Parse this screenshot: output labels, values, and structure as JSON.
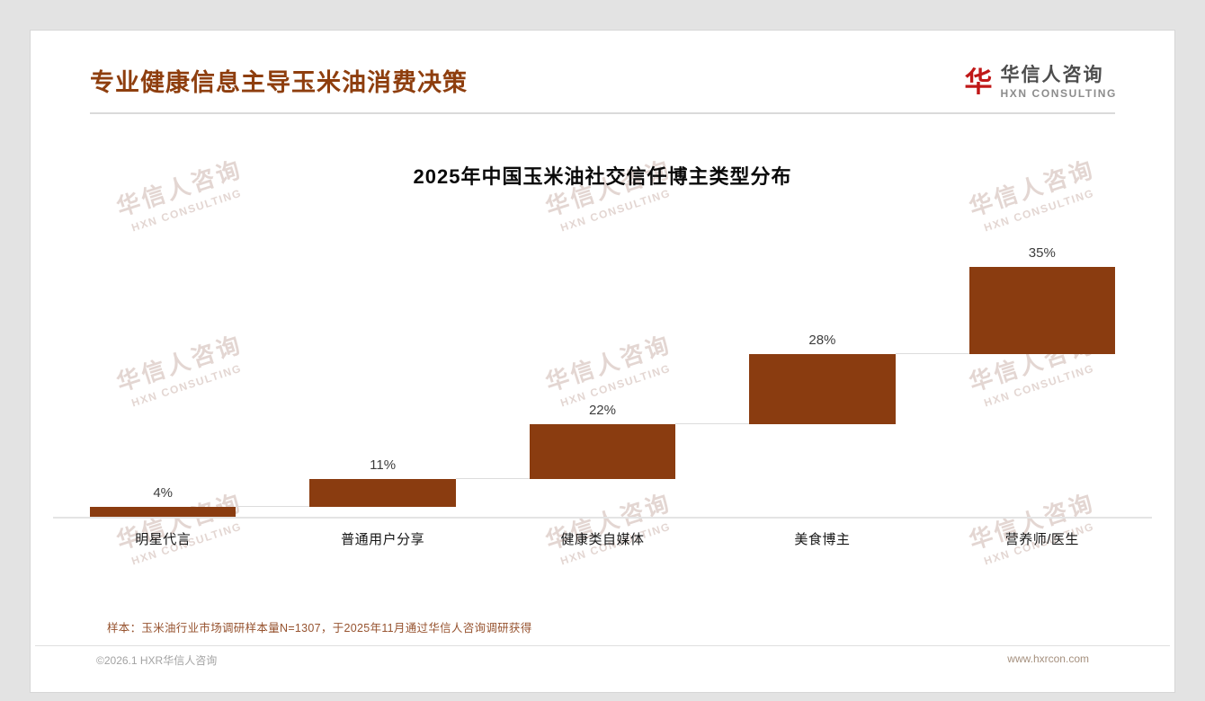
{
  "page": {
    "title": "专业健康信息主导玉米油消费决策",
    "footnote": "样本：玉米油行业市场调研样本量N=1307，于2025年11月通过华信人咨询调研获得",
    "footer_left": "©2026.1 HXR华信人咨询",
    "footer_right": "www.hxrcon.com"
  },
  "logo": {
    "icon": "华",
    "name_cn": "华信人咨询",
    "name_en": "HXN CONSULTING"
  },
  "watermark": {
    "line1": "华信人咨询",
    "line2": "HXN CONSULTING"
  },
  "colors": {
    "accent": "#8e3e0e",
    "bar": "#8a3c10",
    "connector": "#dcdcdc",
    "logo_red": "#c01818",
    "footnote_brown": "#96522e"
  },
  "chart_data": {
    "type": "bar",
    "subtype": "ascending-waterfall",
    "title": "2025年中国玉米油社交信任博主类型分布",
    "categories": [
      "明星代言",
      "普通用户分享",
      "健康类自媒体",
      "美食博主",
      "营养师/医生"
    ],
    "values": [
      4,
      11,
      22,
      28,
      35
    ],
    "value_labels": [
      "4%",
      "11%",
      "22%",
      "28%",
      "35%"
    ],
    "cumulative_tops": [
      4,
      15,
      37,
      65,
      100
    ],
    "ylim": [
      0,
      100
    ],
    "unit": "percent",
    "grid": false,
    "legend": false,
    "connectors": true,
    "xlabel": "",
    "ylabel": ""
  }
}
